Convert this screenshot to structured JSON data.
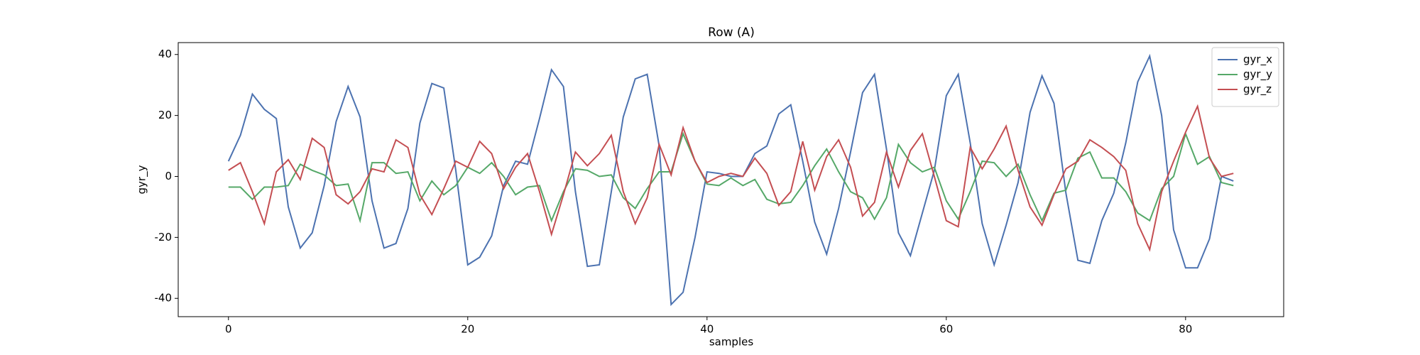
{
  "chart_data": {
    "type": "line",
    "title": "Row (A)",
    "xlabel": "samples",
    "ylabel": "gyr_y",
    "x": [
      0,
      1,
      2,
      3,
      4,
      5,
      6,
      7,
      8,
      9,
      10,
      11,
      12,
      13,
      14,
      15,
      16,
      17,
      18,
      19,
      20,
      21,
      22,
      23,
      24,
      25,
      26,
      27,
      28,
      29,
      30,
      31,
      32,
      33,
      34,
      35,
      36,
      37,
      38,
      39,
      40,
      41,
      42,
      43,
      44,
      45,
      46,
      47,
      48,
      49,
      50,
      51,
      52,
      53,
      54,
      55,
      56,
      57,
      58,
      59,
      60,
      61,
      62,
      63,
      64,
      65,
      66,
      67,
      68,
      69,
      70,
      71,
      72,
      73,
      74,
      75,
      76,
      77,
      78,
      79,
      80,
      81,
      82,
      83,
      84
    ],
    "series": [
      {
        "name": "gyr_x",
        "color": "#4c72b0",
        "values": [
          5,
          13.5,
          27,
          22,
          19,
          -10,
          -23.5,
          -18.5,
          -3,
          18,
          29.5,
          19.5,
          -8,
          -23.5,
          -22,
          -10.5,
          17.5,
          30.5,
          29,
          2,
          -29,
          -26.5,
          -19.5,
          -3,
          5,
          4,
          19,
          35,
          29.5,
          -5,
          -29.5,
          -29,
          -5,
          19.5,
          32,
          33.5,
          10,
          -42,
          -38,
          -20,
          1.5,
          1,
          0,
          0,
          7.5,
          10,
          20.5,
          23.5,
          5,
          -15,
          -25.5,
          -10.5,
          8,
          27.5,
          33.5,
          9,
          -18.5,
          -26,
          -12,
          2,
          26.5,
          33.5,
          11,
          -15.5,
          -29,
          -16,
          -2,
          21,
          33,
          24,
          -5.5,
          -27.5,
          -28.5,
          -14.5,
          -5.5,
          11,
          31,
          39.5,
          20,
          -17.5,
          -30,
          -30,
          -20.5,
          0,
          -1.5
        ]
      },
      {
        "name": "gyr_y",
        "color": "#55a868",
        "values": [
          -3.5,
          -3.5,
          -7.5,
          -3.5,
          -3.5,
          -3,
          4,
          2,
          0.5,
          -3,
          -2.5,
          -14.5,
          4.5,
          4.5,
          1,
          1.5,
          -8,
          -1.5,
          -6,
          -3,
          3,
          1,
          4.5,
          0,
          -6,
          -3.5,
          -3,
          -14.5,
          -5,
          2.5,
          2,
          0,
          0.5,
          -7,
          -10.5,
          -4,
          1.5,
          1.5,
          14,
          5,
          -2.5,
          -3,
          -0.5,
          -3,
          -1,
          -7.5,
          -9,
          -8.5,
          -3,
          3.5,
          9,
          1.5,
          -5,
          -7,
          -14,
          -7,
          10.5,
          4.5,
          1.5,
          3,
          -8,
          -14,
          -5,
          5,
          4.5,
          0,
          4,
          -6,
          -14.5,
          -5.5,
          -4.5,
          6,
          8,
          -0.5,
          -0.5,
          -5,
          -12,
          -14.5,
          -4,
          0,
          14,
          4,
          6.5,
          -2,
          -3
        ]
      },
      {
        "name": "gyr_z",
        "color": "#c44e52",
        "values": [
          2,
          4.5,
          -5,
          -15.5,
          1.5,
          5.5,
          -1,
          12.5,
          9.5,
          -6,
          -9,
          -5,
          2.5,
          1.5,
          12,
          9.5,
          -6,
          -12.5,
          -4,
          5,
          3,
          11.5,
          7.5,
          -4,
          3,
          7.5,
          -5,
          -19,
          -6,
          8,
          3.5,
          7.5,
          13.5,
          -5,
          -15.5,
          -7,
          10.5,
          0.5,
          16,
          5,
          -2,
          0,
          1,
          0,
          6,
          1,
          -9.5,
          -5,
          11.5,
          -4.5,
          6.5,
          12,
          3,
          -13,
          -8.5,
          8,
          -3.5,
          8.5,
          14,
          0,
          -14.5,
          -16.5,
          9.5,
          2.5,
          9,
          16.5,
          2,
          -10,
          -16,
          -6,
          2.5,
          5,
          12,
          9.5,
          6.5,
          2,
          -15.5,
          -24,
          -5,
          5,
          14.5,
          23,
          6,
          0,
          1
        ]
      }
    ],
    "xlim": [
      -4.2,
      88.2
    ],
    "ylim": [
      -46,
      43.9
    ],
    "xticks": [
      0,
      20,
      40,
      60,
      80
    ],
    "yticks": [
      -40,
      -20,
      0,
      20,
      40
    ],
    "grid": false,
    "legend": "upper right"
  }
}
